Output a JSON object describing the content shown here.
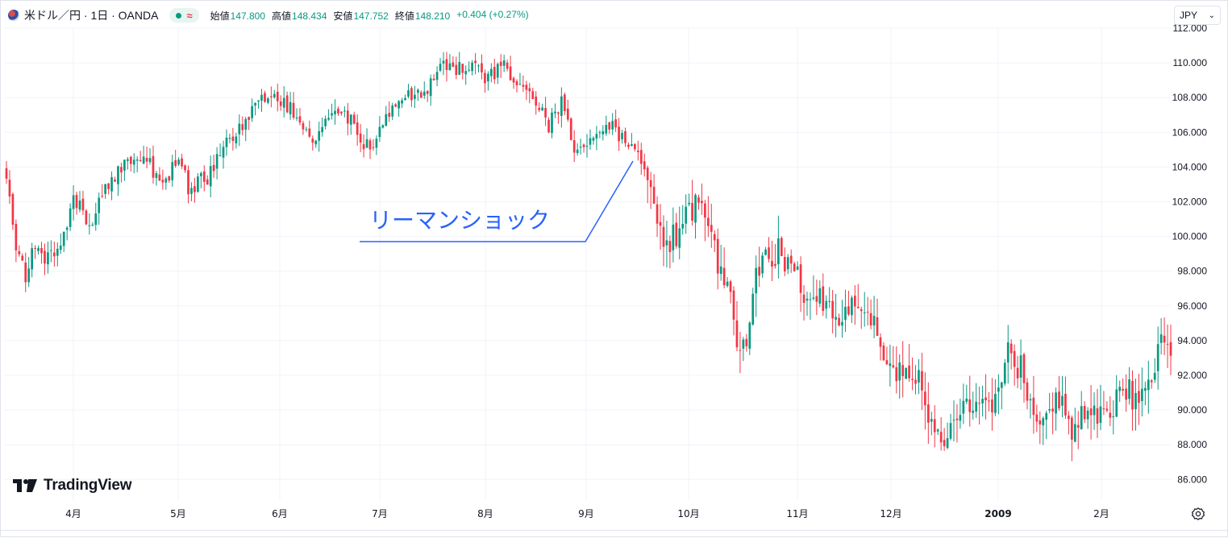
{
  "legend": {
    "symbol": "米ドル／円 · 1日 · OANDA",
    "status_icon": "approx-icon",
    "approx_glyph": "≈",
    "open_label": "始値",
    "open": "147.800",
    "high_label": "高値",
    "high": "148.434",
    "low_label": "安値",
    "low": "147.752",
    "close_label": "終値",
    "close": "148.210",
    "change": "+0.404 (+0.27%)"
  },
  "currency_selector": {
    "value": "JPY"
  },
  "brand": {
    "name": "TradingView"
  },
  "colors": {
    "up": "#089981",
    "down": "#f23645",
    "grid": "#f0f3fa",
    "annotation": "#2962ff",
    "axis_text": "#131722"
  },
  "chart_data": {
    "type": "candlestick",
    "annotation": "リーマンショック",
    "x_tick_labels": [
      "4月",
      "5月",
      "6月",
      "7月",
      "8月",
      "9月",
      "10月",
      "11月",
      "12月",
      "2009",
      "2月"
    ],
    "y_tick_labels": [
      "86.000",
      "88.000",
      "90.000",
      "92.000",
      "94.000",
      "96.000",
      "98.000",
      "100.000",
      "102.000",
      "104.000",
      "106.000",
      "108.000",
      "110.000",
      "112.000"
    ],
    "ylim": [
      84.5,
      112.5
    ],
    "grid": true,
    "anchors": [
      [
        0,
        103.2
      ],
      [
        3,
        99.5
      ],
      [
        6,
        97.5
      ],
      [
        8,
        99
      ],
      [
        12,
        98.8
      ],
      [
        17,
        99.5
      ],
      [
        21,
        102.3
      ],
      [
        26,
        100.7
      ],
      [
        32,
        103
      ],
      [
        37,
        104.3
      ],
      [
        44,
        104.5
      ],
      [
        49,
        102.8
      ],
      [
        54,
        104.7
      ],
      [
        57,
        102.8
      ],
      [
        63,
        103.4
      ],
      [
        69,
        105.5
      ],
      [
        74,
        106.2
      ],
      [
        78,
        107.7
      ],
      [
        82,
        108.3
      ],
      [
        88,
        107.5
      ],
      [
        92,
        106.7
      ],
      [
        96,
        105.8
      ],
      [
        101,
        106.5
      ],
      [
        105,
        107.5
      ],
      [
        110,
        106.0
      ],
      [
        114,
        104.9
      ],
      [
        119,
        106.7
      ],
      [
        124,
        107.9
      ],
      [
        131,
        108.3
      ],
      [
        136,
        110.1
      ],
      [
        143,
        109.6
      ],
      [
        147,
        110.4
      ],
      [
        150,
        109.1
      ],
      [
        156,
        109.8
      ],
      [
        162,
        108.6
      ],
      [
        166,
        107.9
      ],
      [
        170,
        106.3
      ],
      [
        174,
        107.9
      ],
      [
        178,
        104.8
      ],
      [
        184,
        105.3
      ],
      [
        188,
        106.6
      ],
      [
        193,
        105.7
      ],
      [
        196,
        105.5
      ],
      [
        200,
        104.2
      ],
      [
        203,
        101.6
      ],
      [
        207,
        99.4
      ],
      [
        211,
        100.4
      ],
      [
        215,
        101.6
      ],
      [
        219,
        101.8
      ],
      [
        222,
        99
      ],
      [
        226,
        97.5
      ],
      [
        229,
        93.1
      ],
      [
        232,
        94.4
      ],
      [
        235,
        97.6
      ],
      [
        239,
        98.9
      ],
      [
        242,
        99.2
      ],
      [
        245,
        98.3
      ],
      [
        249,
        97.2
      ],
      [
        253,
        96.1
      ],
      [
        257,
        96.6
      ],
      [
        261,
        94.3
      ],
      [
        265,
        96.5
      ],
      [
        268,
        95.5
      ],
      [
        271,
        95.3
      ],
      [
        275,
        93.0
      ],
      [
        279,
        92.4
      ],
      [
        283,
        92.2
      ],
      [
        287,
        91.3
      ],
      [
        291,
        88.5
      ],
      [
        295,
        88.0
      ],
      [
        299,
        89.9
      ],
      [
        303,
        90.7
      ],
      [
        307,
        90.4
      ],
      [
        311,
        90.5
      ],
      [
        314,
        93.2
      ],
      [
        318,
        92.4
      ],
      [
        322,
        89.5
      ],
      [
        326,
        89.8
      ],
      [
        330,
        90.5
      ],
      [
        334,
        88.9
      ],
      [
        338,
        90.0
      ],
      [
        342,
        89.7
      ],
      [
        346,
        89.6
      ],
      [
        350,
        91.8
      ],
      [
        354,
        90.2
      ],
      [
        358,
        91.7
      ],
      [
        362,
        94.0
      ],
      [
        365,
        93.8
      ]
    ],
    "series": [
      {
        "kind": "candles",
        "count": 366
      }
    ]
  }
}
